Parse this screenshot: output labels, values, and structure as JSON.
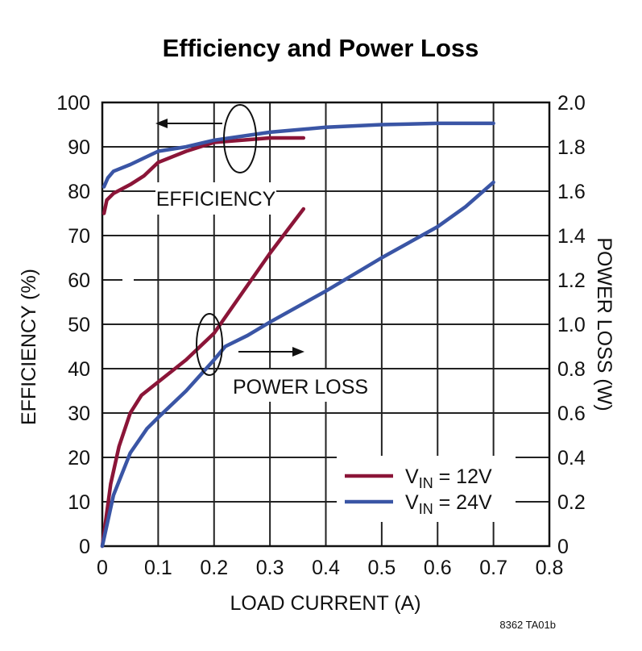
{
  "chart_data": {
    "type": "line",
    "title": "Efficiency and Power Loss",
    "xlabel": "LOAD CURRENT (A)",
    "ylabel_left": "EFFICIENCY (%)",
    "ylabel_right": "POWER LOSS (W)",
    "xlim": [
      0,
      0.8
    ],
    "ylim_left": [
      0,
      100
    ],
    "ylim_right": [
      0,
      2.0
    ],
    "xticks": [
      "0",
      "0.1",
      "0.2",
      "0.3",
      "0.4",
      "0.5",
      "0.6",
      "0.7",
      "0.8"
    ],
    "yticks_left": [
      "0",
      "10",
      "20",
      "30",
      "40",
      "50",
      "60",
      "70",
      "80",
      "90",
      "100"
    ],
    "yticks_right": [
      "0",
      "0.2",
      "0.4",
      "0.6",
      "0.8",
      "1.0",
      "1.2",
      "1.4",
      "1.6",
      "1.8",
      "2.0"
    ],
    "grid": true,
    "colors": {
      "vin12": "#8b1538",
      "vin24": "#3a55a5"
    },
    "series": [
      {
        "name": "VIN = 12V",
        "legend_main": "V",
        "legend_sub": "IN",
        "legend_rest": " = 12V",
        "color_key": "vin12",
        "axis": "left",
        "kind": "efficiency",
        "x": [
          0.003,
          0.008,
          0.02,
          0.05,
          0.075,
          0.1,
          0.15,
          0.2,
          0.25,
          0.3,
          0.36
        ],
        "y": [
          75,
          78,
          79.5,
          81.5,
          83.5,
          86.5,
          89,
          91,
          91.5,
          92,
          92
        ]
      },
      {
        "name": "VIN = 24V",
        "legend_main": "V",
        "legend_sub": "IN",
        "legend_rest": " = 24V",
        "color_key": "vin24",
        "axis": "left",
        "kind": "efficiency",
        "x": [
          0.003,
          0.01,
          0.02,
          0.05,
          0.1,
          0.15,
          0.2,
          0.3,
          0.4,
          0.5,
          0.6,
          0.7
        ],
        "y": [
          81,
          83,
          84.5,
          86,
          89,
          90,
          91.5,
          93.3,
          94.4,
          95,
          95.3,
          95.3
        ]
      },
      {
        "name": "VIN = 12V",
        "color_key": "vin12",
        "axis": "right",
        "kind": "power_loss",
        "x": [
          0,
          0.015,
          0.03,
          0.05,
          0.07,
          0.1,
          0.15,
          0.2,
          0.25,
          0.3,
          0.33,
          0.36
        ],
        "y": [
          0,
          0.28,
          0.45,
          0.6,
          0.68,
          0.74,
          0.84,
          0.96,
          1.14,
          1.32,
          1.42,
          1.52
        ]
      },
      {
        "name": "VIN = 24V",
        "color_key": "vin24",
        "axis": "right",
        "kind": "power_loss",
        "x": [
          0,
          0.02,
          0.05,
          0.08,
          0.1,
          0.15,
          0.2,
          0.22,
          0.26,
          0.3,
          0.4,
          0.5,
          0.6,
          0.65,
          0.7
        ],
        "y": [
          0,
          0.23,
          0.42,
          0.53,
          0.58,
          0.7,
          0.84,
          0.9,
          0.95,
          1.01,
          1.15,
          1.3,
          1.44,
          1.53,
          1.64
        ]
      }
    ],
    "annotations": {
      "efficiency": "EFFICIENCY",
      "power_loss": "POWER LOSS"
    },
    "figure_code": "8362 TA01b"
  }
}
